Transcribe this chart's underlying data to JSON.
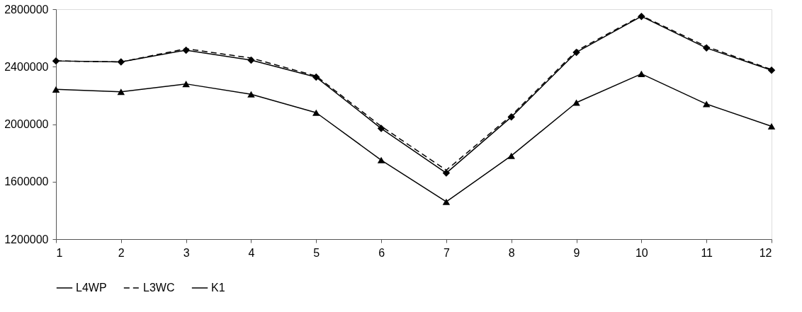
{
  "chart_data": {
    "type": "line",
    "x": [
      1,
      2,
      3,
      4,
      5,
      6,
      7,
      8,
      9,
      10,
      11,
      12
    ],
    "xlim": [
      1,
      12
    ],
    "xticks": [
      1,
      2,
      3,
      4,
      5,
      6,
      7,
      8,
      9,
      10,
      11,
      12
    ],
    "ylim": [
      1200000,
      2800000
    ],
    "yticks": [
      1200000,
      1600000,
      2000000,
      2400000,
      2800000
    ],
    "grid": false,
    "legend": "bottom",
    "series": [
      {
        "name": "L4WP",
        "color": "#000000",
        "marker": "diamond",
        "line_style": "solid",
        "values": [
          2440000,
          2433000,
          2515000,
          2446000,
          2327000,
          1970000,
          1660000,
          2050000,
          2500000,
          2750000,
          2530000,
          2375000
        ]
      },
      {
        "name": "L3WC",
        "color": "#000000",
        "marker": "none",
        "line_style": "dashed",
        "values": [
          2440000,
          2433000,
          2525000,
          2460000,
          2335000,
          1985000,
          1680000,
          2060000,
          2510000,
          2755000,
          2540000,
          2380000
        ]
      },
      {
        "name": "K1",
        "color": "#000000",
        "marker": "triangle",
        "line_style": "solid",
        "values": [
          2242000,
          2225000,
          2280000,
          2208000,
          2080000,
          1750000,
          1460000,
          1780000,
          2150000,
          2350000,
          2140000,
          1985000
        ]
      }
    ]
  }
}
